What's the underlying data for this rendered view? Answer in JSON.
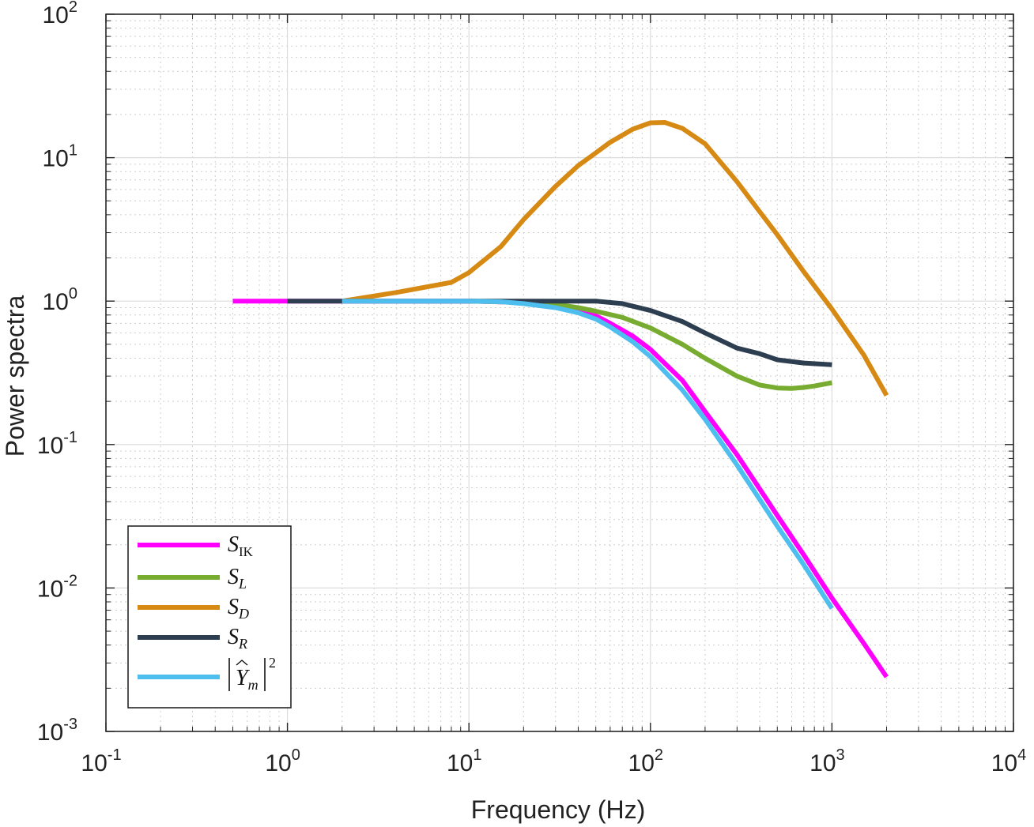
{
  "chart_data": {
    "type": "line",
    "xscale": "log",
    "yscale": "log",
    "xlabel": "Frequency (Hz)",
    "ylabel": "Power spectra",
    "xlim": [
      0.1,
      10000
    ],
    "ylim": [
      0.001,
      100
    ],
    "grid": true,
    "minor_grid": true,
    "legend_position": "bottom-left",
    "x_ticks": [
      {
        "value": 0.1,
        "base": "10",
        "exp": "-1"
      },
      {
        "value": 1,
        "base": "10",
        "exp": "0"
      },
      {
        "value": 10,
        "base": "10",
        "exp": "1"
      },
      {
        "value": 100,
        "base": "10",
        "exp": "2"
      },
      {
        "value": 1000,
        "base": "10",
        "exp": "3"
      },
      {
        "value": 10000,
        "base": "10",
        "exp": "4"
      }
    ],
    "y_ticks": [
      {
        "value": 0.001,
        "base": "10",
        "exp": "-3"
      },
      {
        "value": 0.01,
        "base": "10",
        "exp": "-2"
      },
      {
        "value": 0.1,
        "base": "10",
        "exp": "-1"
      },
      {
        "value": 1,
        "base": "10",
        "exp": "0"
      },
      {
        "value": 10,
        "base": "10",
        "exp": "1"
      },
      {
        "value": 100,
        "base": "10",
        "exp": "2"
      }
    ],
    "series": [
      {
        "name": "S_IK",
        "label_main": "S",
        "label_sub": "IK",
        "color": "#ff00ff",
        "points": [
          [
            0.5,
            1.0
          ],
          [
            1,
            1.0
          ],
          [
            2,
            1.0
          ],
          [
            5,
            1.0
          ],
          [
            10,
            1.0
          ],
          [
            20,
            0.98
          ],
          [
            30,
            0.94
          ],
          [
            40,
            0.88
          ],
          [
            50,
            0.79
          ],
          [
            60,
            0.7
          ],
          [
            80,
            0.57
          ],
          [
            100,
            0.46
          ],
          [
            150,
            0.28
          ],
          [
            200,
            0.17
          ],
          [
            300,
            0.085
          ],
          [
            500,
            0.032
          ],
          [
            700,
            0.017
          ],
          [
            1000,
            0.0085
          ],
          [
            1500,
            0.0041
          ],
          [
            2000,
            0.0024
          ]
        ]
      },
      {
        "name": "S_L",
        "label_main": "S",
        "label_sub": "L",
        "color": "#77ac30",
        "points": [
          [
            10,
            1.0
          ],
          [
            20,
            0.98
          ],
          [
            30,
            0.95
          ],
          [
            40,
            0.9
          ],
          [
            50,
            0.85
          ],
          [
            70,
            0.77
          ],
          [
            100,
            0.65
          ],
          [
            150,
            0.5
          ],
          [
            200,
            0.4
          ],
          [
            300,
            0.3
          ],
          [
            400,
            0.26
          ],
          [
            500,
            0.248
          ],
          [
            600,
            0.246
          ],
          [
            700,
            0.25
          ],
          [
            800,
            0.256
          ],
          [
            1000,
            0.27
          ]
        ]
      },
      {
        "name": "S_D",
        "label_main": "S",
        "label_sub": "D",
        "color": "#d68a14",
        "points": [
          [
            2,
            1.0
          ],
          [
            4,
            1.15
          ],
          [
            8,
            1.35
          ],
          [
            10,
            1.58
          ],
          [
            15,
            2.4
          ],
          [
            20,
            3.7
          ],
          [
            30,
            6.3
          ],
          [
            40,
            8.8
          ],
          [
            50,
            10.8
          ],
          [
            60,
            12.8
          ],
          [
            80,
            15.8
          ],
          [
            100,
            17.5
          ],
          [
            120,
            17.6
          ],
          [
            150,
            16.0
          ],
          [
            200,
            12.5
          ],
          [
            300,
            6.8
          ],
          [
            400,
            4.2
          ],
          [
            500,
            2.9
          ],
          [
            700,
            1.6
          ],
          [
            1000,
            0.88
          ],
          [
            1500,
            0.42
          ],
          [
            2000,
            0.22
          ]
        ]
      },
      {
        "name": "S_R",
        "label_main": "S",
        "label_sub": "R",
        "color": "#2c3e50",
        "points": [
          [
            1,
            1.0
          ],
          [
            2,
            1.0
          ],
          [
            5,
            1.0
          ],
          [
            10,
            1.0
          ],
          [
            20,
            1.0
          ],
          [
            30,
            1.0
          ],
          [
            50,
            1.0
          ],
          [
            70,
            0.96
          ],
          [
            100,
            0.86
          ],
          [
            150,
            0.72
          ],
          [
            200,
            0.6
          ],
          [
            300,
            0.47
          ],
          [
            400,
            0.43
          ],
          [
            500,
            0.39
          ],
          [
            700,
            0.37
          ],
          [
            1000,
            0.36
          ]
        ]
      },
      {
        "name": "|Y_m-hat|^2",
        "label_main": "Y",
        "label_sub": "m",
        "label_sup": "2",
        "color": "#4dbeee",
        "points": [
          [
            2,
            1.0
          ],
          [
            5,
            1.0
          ],
          [
            10,
            1.0
          ],
          [
            15,
            0.99
          ],
          [
            20,
            0.96
          ],
          [
            30,
            0.9
          ],
          [
            40,
            0.83
          ],
          [
            50,
            0.75
          ],
          [
            60,
            0.66
          ],
          [
            80,
            0.52
          ],
          [
            100,
            0.41
          ],
          [
            150,
            0.24
          ],
          [
            200,
            0.15
          ],
          [
            300,
            0.072
          ],
          [
            500,
            0.027
          ],
          [
            700,
            0.0145
          ],
          [
            1000,
            0.0072
          ]
        ]
      }
    ]
  }
}
